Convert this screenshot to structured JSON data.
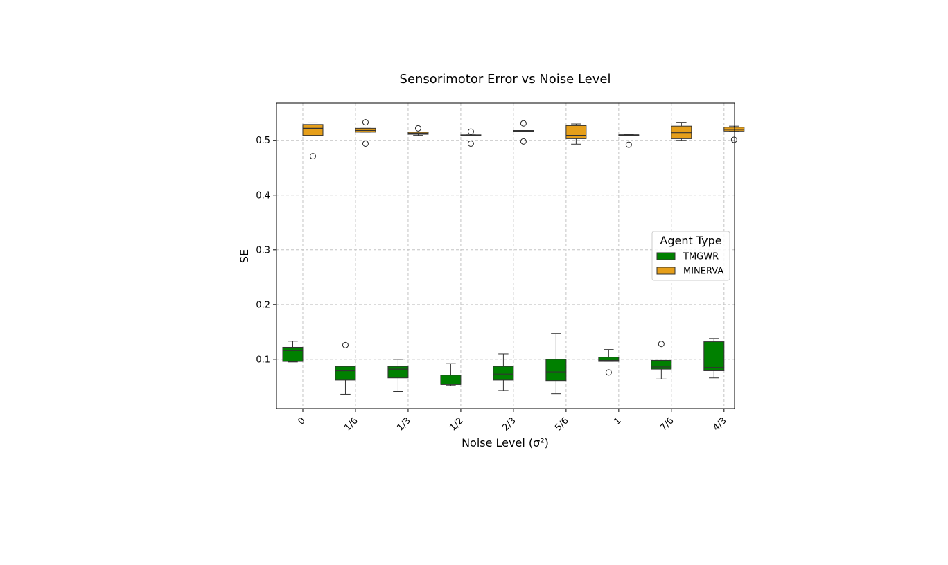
{
  "chart_data": {
    "type": "box",
    "title": "Sensorimotor Error vs Noise Level",
    "xlabel": "Noise Level (σ²)",
    "ylabel": "SE",
    "categories": [
      "0",
      "1/6",
      "1/3",
      "1/2",
      "2/3",
      "5/6",
      "1",
      "7/6",
      "4/3"
    ],
    "ylim": [
      0.01,
      0.568
    ],
    "yticks": [
      0.1,
      0.2,
      0.3,
      0.4,
      0.5
    ],
    "ytick_labels": [
      "0.1",
      "0.2",
      "0.3",
      "0.4",
      "0.5"
    ],
    "grid": true,
    "legend": {
      "title": "Agent Type",
      "placement": "center-right"
    },
    "series": [
      {
        "name": "TMGWR",
        "color": "#008000",
        "boxes": [
          {
            "whislo": 0.095,
            "q1": 0.096,
            "med": 0.116,
            "q3": 0.122,
            "whishi": 0.133,
            "fliers": []
          },
          {
            "whislo": 0.036,
            "q1": 0.062,
            "med": 0.079,
            "q3": 0.087,
            "whishi": 0.087,
            "fliers": [
              0.126
            ]
          },
          {
            "whislo": 0.041,
            "q1": 0.066,
            "med": 0.082,
            "q3": 0.087,
            "whishi": 0.1,
            "fliers": []
          },
          {
            "whislo": 0.052,
            "q1": 0.054,
            "med": 0.054,
            "q3": 0.071,
            "whishi": 0.092,
            "fliers": []
          },
          {
            "whislo": 0.043,
            "q1": 0.062,
            "med": 0.073,
            "q3": 0.087,
            "whishi": 0.11,
            "fliers": []
          },
          {
            "whislo": 0.037,
            "q1": 0.061,
            "med": 0.077,
            "q3": 0.1,
            "whishi": 0.147,
            "fliers": []
          },
          {
            "whislo": 0.096,
            "q1": 0.096,
            "med": 0.098,
            "q3": 0.104,
            "whishi": 0.118,
            "fliers": [
              0.076
            ]
          },
          {
            "whislo": 0.064,
            "q1": 0.082,
            "med": 0.086,
            "q3": 0.098,
            "whishi": 0.098,
            "fliers": [
              0.128
            ]
          },
          {
            "whislo": 0.066,
            "q1": 0.079,
            "med": 0.085,
            "q3": 0.132,
            "whishi": 0.138,
            "fliers": []
          }
        ]
      },
      {
        "name": "MINERVA",
        "color": "#E69F1A",
        "boxes": [
          {
            "whislo": 0.509,
            "q1": 0.509,
            "med": 0.522,
            "q3": 0.529,
            "whishi": 0.532,
            "fliers": [
              0.471
            ]
          },
          {
            "whislo": 0.515,
            "q1": 0.515,
            "med": 0.518,
            "q3": 0.522,
            "whishi": 0.522,
            "fliers": [
              0.533,
              0.494
            ]
          },
          {
            "whislo": 0.509,
            "q1": 0.511,
            "med": 0.513,
            "q3": 0.515,
            "whishi": 0.515,
            "fliers": [
              0.522
            ]
          },
          {
            "whislo": 0.508,
            "q1": 0.508,
            "med": 0.509,
            "q3": 0.51,
            "whishi": 0.51,
            "fliers": [
              0.516,
              0.494
            ]
          },
          {
            "whislo": 0.517,
            "q1": 0.517,
            "med": 0.517,
            "q3": 0.518,
            "whishi": 0.518,
            "fliers": [
              0.531,
              0.498
            ]
          },
          {
            "whislo": 0.493,
            "q1": 0.503,
            "med": 0.509,
            "q3": 0.527,
            "whishi": 0.53,
            "fliers": []
          },
          {
            "whislo": 0.509,
            "q1": 0.509,
            "med": 0.51,
            "q3": 0.51,
            "whishi": 0.511,
            "fliers": [
              0.492
            ]
          },
          {
            "whislo": 0.5,
            "q1": 0.503,
            "med": 0.514,
            "q3": 0.526,
            "whishi": 0.533,
            "fliers": []
          },
          {
            "whislo": 0.517,
            "q1": 0.517,
            "med": 0.52,
            "q3": 0.524,
            "whishi": 0.526,
            "fliers": [
              0.501
            ]
          }
        ]
      }
    ]
  }
}
